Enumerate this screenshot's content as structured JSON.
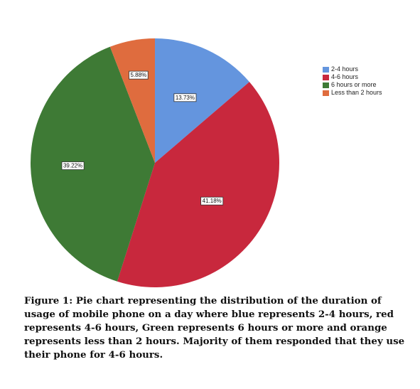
{
  "chart_data": {
    "type": "pie",
    "categories": [
      "2-4 hours",
      "4-6 hours",
      "6 hours or more",
      "Less than 2 hours"
    ],
    "values": [
      13.73,
      41.18,
      39.22,
      5.88
    ],
    "labels": [
      "13.73%",
      "41.18%",
      "39.22%",
      "5.88%"
    ],
    "colors": [
      "#6495de",
      "#c8283d",
      "#3e7a35",
      "#df6c3e"
    ],
    "start_angle_deg": 0,
    "direction": "clockwise",
    "legend_position": "top-right"
  },
  "legend": {
    "items": [
      {
        "label": "2-4 hours",
        "color": "#6495de"
      },
      {
        "label": "4-6 hours",
        "color": "#c8283d"
      },
      {
        "label": "6 hours or more",
        "color": "#3e7a35"
      },
      {
        "label": "Less than 2 hours",
        "color": "#df6c3e"
      }
    ]
  },
  "caption": {
    "text": "Figure 1: Pie chart representing the distribution of the duration of usage of mobile phone on a day where blue represents 2-4 hours, red represents 4-6 hours, Green represents 6 hours or more and orange represents less than 2 hours. Majority of them responded that they use their phone for 4-6 hours."
  }
}
